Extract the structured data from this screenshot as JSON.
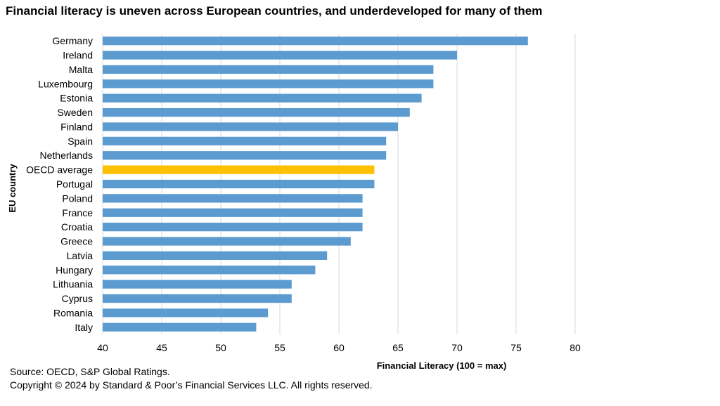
{
  "title": "Financial literacy is uneven across European countries, and underdeveloped for many of them",
  "source_line": "Source: OECD, S&P Global Ratings.",
  "copyright_line": "Copyright © 2024 by Standard & Poor’s Financial Services LLC. All rights reserved.",
  "chart_data": {
    "type": "bar",
    "orientation": "horizontal",
    "title": "Financial literacy is uneven across European countries, and underdeveloped for many of them",
    "xlabel": "Financial Literacy (100 = max)",
    "ylabel": "EU country",
    "xlim": [
      40,
      80
    ],
    "xticks": [
      40,
      45,
      50,
      55,
      60,
      65,
      70,
      75,
      80
    ],
    "grid": true,
    "categories": [
      "Germany",
      "Ireland",
      "Malta",
      "Luxembourg",
      "Estonia",
      "Sweden",
      "Finland",
      "Spain",
      "Netherlands",
      "OECD average",
      "Portugal",
      "Poland",
      "France",
      "Croatia",
      "Greece",
      "Latvia",
      "Hungary",
      "Lithuania",
      "Cyprus",
      "Romania",
      "Italy"
    ],
    "values": [
      76,
      70,
      68,
      68,
      67,
      66,
      65,
      64,
      64,
      63,
      63,
      62,
      62,
      62,
      61,
      59,
      58,
      56,
      56,
      54,
      53
    ],
    "bar_color": "#5b9bd0",
    "highlight_color": "#ffc000",
    "highlight_category": "OECD average"
  }
}
